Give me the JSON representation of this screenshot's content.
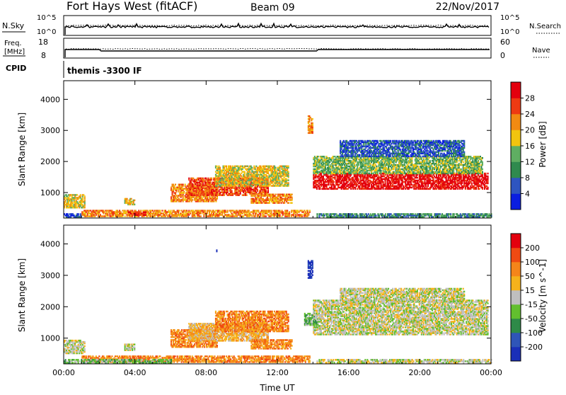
{
  "header": {
    "station": "Fort Hays West (fitACF)",
    "beam": "Beam 09",
    "date": "22/Nov/2017"
  },
  "top_panels": {
    "nsky": {
      "label": "N.Sky",
      "ticks_left": [
        "10^5",
        "10^0"
      ],
      "right_label": "N.Search",
      "ticks_right": [
        "10^5",
        "10^0"
      ]
    },
    "freq": {
      "label_line1": "Freq.",
      "label_line2": "[MHz]",
      "ticks_left": [
        "18",
        "8"
      ],
      "right_label": "Nave",
      "ticks_right": [
        "60",
        "0"
      ]
    },
    "cpid": {
      "label": "CPID",
      "program": "themis -3300 IF"
    }
  },
  "chart_data": [
    {
      "type": "heatmap",
      "name": "power",
      "ylabel": "Slant Range [km]",
      "xlabel": "",
      "xlim": [
        0,
        24
      ],
      "ylim": [
        180,
        4600
      ],
      "y_ticks": [
        1000,
        2000,
        3000,
        4000
      ],
      "x_ticks": [
        0,
        4,
        8,
        12,
        16,
        20,
        24
      ],
      "colorbar": {
        "label": "Power [dB]",
        "ticks": [
          "4",
          "8",
          "12",
          "16",
          "20",
          "24",
          "28"
        ],
        "colors": [
          "#0a1ee0",
          "#2e55c0",
          "#2f8a4e",
          "#5fae62",
          "#f2c40f",
          "#f28a12",
          "#ee3a12",
          "#e3000e"
        ]
      },
      "regions": [
        {
          "t0": 0.0,
          "t1": 1.2,
          "r0": 500,
          "r1": 950,
          "level": 4
        },
        {
          "t0": 0.0,
          "t1": 1.0,
          "r0": 200,
          "r1": 320,
          "level": 1
        },
        {
          "t0": 1.0,
          "t1": 13.8,
          "r0": 220,
          "r1": 420,
          "level": 5
        },
        {
          "t0": 3.4,
          "t1": 4.0,
          "r0": 600,
          "r1": 800,
          "level": 4
        },
        {
          "t0": 3.6,
          "t1": 4.6,
          "r0": 260,
          "r1": 380,
          "level": 6
        },
        {
          "t0": 6.0,
          "t1": 8.6,
          "r0": 700,
          "r1": 1250,
          "level": 5
        },
        {
          "t0": 7.0,
          "t1": 11.5,
          "r0": 900,
          "r1": 1450,
          "level": 6
        },
        {
          "t0": 8.5,
          "t1": 12.6,
          "r0": 1200,
          "r1": 1850,
          "level": 4
        },
        {
          "t0": 10.5,
          "t1": 12.8,
          "r0": 650,
          "r1": 950,
          "level": 5
        },
        {
          "t0": 13.7,
          "t1": 13.95,
          "r0": 2900,
          "r1": 3450,
          "level": 5
        },
        {
          "t0": 14.0,
          "t1": 23.8,
          "r0": 1100,
          "r1": 1600,
          "level": 7
        },
        {
          "t0": 14.0,
          "t1": 23.5,
          "r0": 1600,
          "r1": 2150,
          "level": 3
        },
        {
          "t0": 15.5,
          "t1": 22.5,
          "r0": 2150,
          "r1": 2650,
          "level": 1
        },
        {
          "t0": 14.2,
          "t1": 24.0,
          "r0": 200,
          "r1": 320,
          "level": 2
        }
      ]
    },
    {
      "type": "heatmap",
      "name": "velocity",
      "ylabel": "Slant Range [km]",
      "xlabel": "Time UT",
      "xlim": [
        0,
        24
      ],
      "ylim": [
        180,
        4600
      ],
      "y_ticks": [
        1000,
        2000,
        3000,
        4000
      ],
      "x_ticks": [
        0,
        4,
        8,
        12,
        16,
        20,
        24
      ],
      "x_tick_labels": [
        "00:00",
        "04:00",
        "08:00",
        "12:00",
        "16:00",
        "20:00",
        "00:00"
      ],
      "colorbar": {
        "label": "Velocity [m s^-1]",
        "ticks": [
          "200",
          "100",
          "50",
          "15",
          "-15",
          "-50",
          "-100",
          "-200"
        ],
        "colors": [
          "#1a2fb8",
          "#2f55b8",
          "#2e8a48",
          "#62bf2e",
          "#bfbfbf",
          "#f5b21b",
          "#f5851a",
          "#ef4a12",
          "#e3000e"
        ]
      },
      "regions": [
        {
          "t0": 0.0,
          "t1": 1.2,
          "r0": 500,
          "r1": 950,
          "level": 4
        },
        {
          "t0": 1.0,
          "t1": 13.8,
          "r0": 220,
          "r1": 420,
          "level": 6
        },
        {
          "t0": 0.0,
          "t1": 6.0,
          "r0": 200,
          "r1": 300,
          "level": 3
        },
        {
          "t0": 3.4,
          "t1": 4.0,
          "r0": 600,
          "r1": 800,
          "level": 4
        },
        {
          "t0": 6.0,
          "t1": 8.6,
          "r0": 700,
          "r1": 1250,
          "level": 6
        },
        {
          "t0": 7.0,
          "t1": 11.5,
          "r0": 900,
          "r1": 1450,
          "level": 5
        },
        {
          "t0": 8.5,
          "t1": 12.6,
          "r0": 1200,
          "r1": 1850,
          "level": 6
        },
        {
          "t0": 10.5,
          "t1": 12.8,
          "r0": 650,
          "r1": 950,
          "level": 6
        },
        {
          "t0": 13.7,
          "t1": 13.95,
          "r0": 2900,
          "r1": 3450,
          "level": 0
        },
        {
          "t0": 14.0,
          "t1": 23.8,
          "r0": 1100,
          "r1": 2200,
          "level": 4
        },
        {
          "t0": 15.5,
          "t1": 22.5,
          "r0": 2150,
          "r1": 2600,
          "level": 4
        },
        {
          "t0": 13.5,
          "t1": 14.2,
          "r0": 1400,
          "r1": 1800,
          "level": 3
        },
        {
          "t0": 14.2,
          "t1": 24.0,
          "r0": 200,
          "r1": 320,
          "level": 4
        }
      ],
      "isolated": [
        {
          "t": 8.6,
          "r": 3780,
          "level": 0
        }
      ]
    }
  ]
}
